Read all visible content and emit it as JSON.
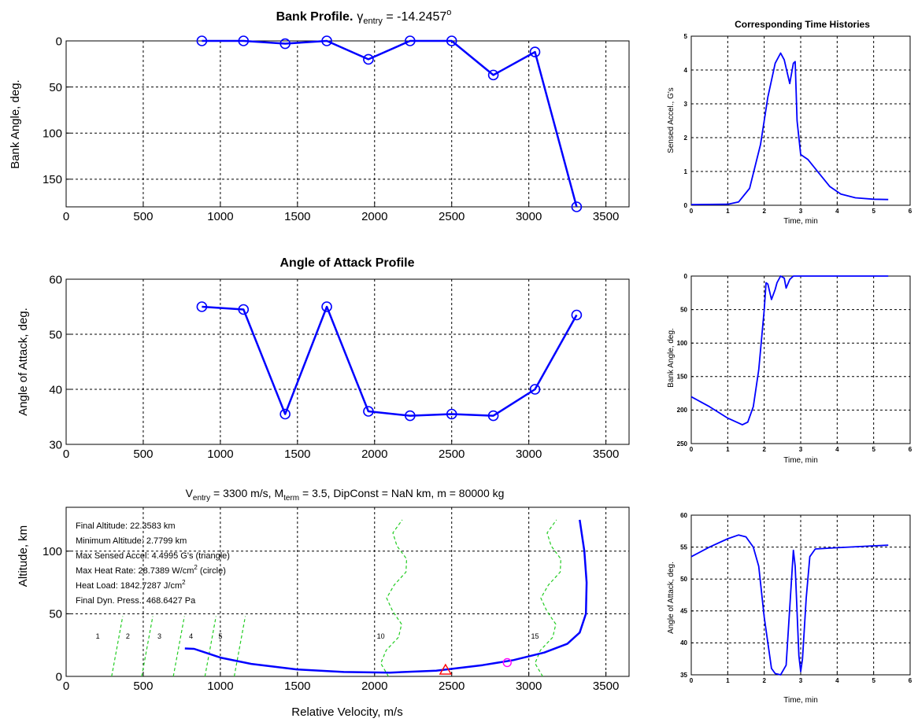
{
  "colors": {
    "line": "#0000ff",
    "grid": "#000000",
    "contour": "#22cc22",
    "triangle": "#ff0000",
    "circle": "#ff00ff",
    "background": "#ffffff"
  },
  "chart_data": [
    {
      "id": "bank",
      "type": "line",
      "title": "Bank Profile.",
      "title_gamma": "γ",
      "title_gamma_sub": "entry",
      "title_value": " = -14.2457",
      "title_sup": "o",
      "ylabel": "Bank Angle, deg.",
      "xlim": [
        0,
        3650
      ],
      "ylim": [
        0,
        180
      ],
      "y_reversed": true,
      "xticks": [
        0,
        500,
        1000,
        1500,
        2000,
        2500,
        3000,
        3500
      ],
      "yticks": [
        0,
        50,
        100,
        150
      ],
      "grid": true,
      "series": [
        {
          "x": [
            880,
            1150,
            1420,
            1690,
            1960,
            2230,
            2500,
            2770,
            3040,
            3310
          ],
          "y": [
            0,
            0,
            3,
            0,
            20,
            0,
            0,
            37,
            12,
            180
          ]
        }
      ]
    },
    {
      "id": "aoa",
      "type": "line",
      "title": "Angle of Attack Profile",
      "ylabel": "Angle of Attack, deg.",
      "xlim": [
        0,
        3650
      ],
      "ylim": [
        30,
        60
      ],
      "xticks": [
        0,
        500,
        1000,
        1500,
        2000,
        2500,
        3000,
        3500
      ],
      "yticks": [
        30,
        40,
        50,
        60
      ],
      "grid": true,
      "series": [
        {
          "x": [
            880,
            1150,
            1420,
            1690,
            1960,
            2230,
            2500,
            2770,
            3040,
            3310
          ],
          "y": [
            55,
            54.5,
            35.5,
            55,
            36,
            35.2,
            35.5,
            35.2,
            40,
            53.5
          ]
        }
      ]
    },
    {
      "id": "alt",
      "type": "line",
      "title_parts": [
        "V",
        "entry",
        " = 3300 m/s, M",
        "term",
        " = 3.5, DipConst = NaN km, m = 80000 kg"
      ],
      "xlabel": "Relative Velocity, m/s",
      "ylabel": "Altitude, km",
      "xlim": [
        0,
        3650
      ],
      "ylim": [
        0,
        135
      ],
      "xticks": [
        0,
        500,
        1000,
        1500,
        2000,
        2500,
        3000,
        3500
      ],
      "yticks": [
        0,
        50,
        100
      ],
      "grid": true,
      "annotations": [
        "Final Altitude:  22.3583 km",
        "Minimum Altitude:  2.7799 km",
        "Max Sensed Accel:  4.4995 G's   (triangle)",
        "Max Heat Rate:  28.7389 W/cm",
        "Heat Load:  1842.7287 J/cm",
        "Final Dyn. Press.:  468.6427 Pa"
      ],
      "annotation_sup": "2",
      "annotation_suffix_heat_rate": "  (circle)",
      "contour_labels": [
        "1",
        "2",
        "3",
        "4",
        "5",
        "10",
        "15"
      ],
      "contour_label_x": [
        205,
        400,
        605,
        810,
        1000,
        2040,
        3040
      ],
      "contour_label_y": [
        30,
        30,
        30,
        30,
        30,
        30,
        30
      ],
      "series": [
        {
          "name": "trajectory",
          "x": [
            770,
            830,
            1000,
            1200,
            1500,
            1800,
            2100,
            2400,
            2700,
            2900,
            3100,
            3250,
            3330,
            3370,
            3375,
            3360,
            3330
          ],
          "y": [
            22.3,
            22,
            15,
            10,
            5.5,
            3.5,
            3,
            4.5,
            9,
            13,
            19,
            26,
            35,
            50,
            75,
            100,
            125
          ]
        }
      ],
      "markers": {
        "max_accel": [
          2460,
          5
        ],
        "max_heat": [
          2860,
          11
        ]
      }
    },
    {
      "id": "ts_accel",
      "type": "line",
      "title": "Corresponding Time Histories",
      "xlabel": "Time, min",
      "ylabel": "Sensed Accel., G's",
      "xlim": [
        0,
        6
      ],
      "ylim": [
        0,
        5
      ],
      "xticks": [
        0,
        1,
        2,
        3,
        4,
        5,
        6
      ],
      "yticks": [
        0,
        1,
        2,
        3,
        4,
        5
      ],
      "grid": true,
      "series": [
        {
          "x": [
            0,
            1.0,
            1.3,
            1.6,
            1.9,
            2.1,
            2.3,
            2.45,
            2.55,
            2.7,
            2.8,
            2.85,
            2.9,
            3.0,
            3.2,
            3.5,
            3.8,
            4.1,
            4.5,
            5.0,
            5.4
          ],
          "y": [
            0.02,
            0.03,
            0.1,
            0.5,
            1.8,
            3.2,
            4.2,
            4.5,
            4.3,
            3.6,
            4.2,
            4.25,
            2.5,
            1.5,
            1.35,
            0.95,
            0.55,
            0.33,
            0.22,
            0.18,
            0.17
          ]
        }
      ]
    },
    {
      "id": "ts_bank",
      "type": "line",
      "xlabel": "Time, min",
      "ylabel": "Bank Angle, deg.",
      "xlim": [
        0,
        6
      ],
      "ylim": [
        0,
        250
      ],
      "y_reversed": true,
      "xticks": [
        0,
        1,
        2,
        3,
        4,
        5,
        6
      ],
      "yticks": [
        0,
        50,
        100,
        150,
        200,
        250
      ],
      "grid": true,
      "series": [
        {
          "x": [
            0,
            0.5,
            1.0,
            1.4,
            1.55,
            1.7,
            1.85,
            2.0,
            2.05,
            2.1,
            2.2,
            2.3,
            2.35,
            2.45,
            2.55,
            2.6,
            2.7,
            2.8,
            2.85,
            3.0,
            3.5,
            4.0,
            5.0,
            5.4
          ],
          "y": [
            180,
            195,
            212,
            222,
            218,
            195,
            140,
            50,
            10,
            12,
            35,
            20,
            10,
            0,
            3,
            18,
            5,
            0,
            0,
            0,
            0,
            0,
            0,
            0
          ]
        }
      ]
    },
    {
      "id": "ts_aoa",
      "type": "line",
      "xlabel": "Time, min",
      "ylabel": "Angle of Attack, deg.",
      "xlim": [
        0,
        6
      ],
      "ylim": [
        35,
        60
      ],
      "xticks": [
        0,
        1,
        2,
        3,
        4,
        5,
        6
      ],
      "yticks": [
        35,
        40,
        45,
        50,
        55,
        60
      ],
      "grid": true,
      "series": [
        {
          "x": [
            0,
            0.5,
            1.0,
            1.3,
            1.5,
            1.7,
            1.85,
            2.0,
            2.2,
            2.3,
            2.45,
            2.6,
            2.75,
            2.8,
            2.85,
            2.95,
            3.0,
            3.05,
            3.15,
            3.25,
            3.4,
            4.0,
            5.0,
            5.4
          ],
          "y": [
            53.5,
            55,
            56.3,
            56.9,
            56.6,
            55,
            52,
            44,
            36,
            35.2,
            35,
            36.5,
            50,
            54.5,
            52,
            38,
            35.5,
            37.5,
            47,
            53.5,
            54.7,
            54.9,
            55.2,
            55.3
          ]
        }
      ]
    }
  ]
}
